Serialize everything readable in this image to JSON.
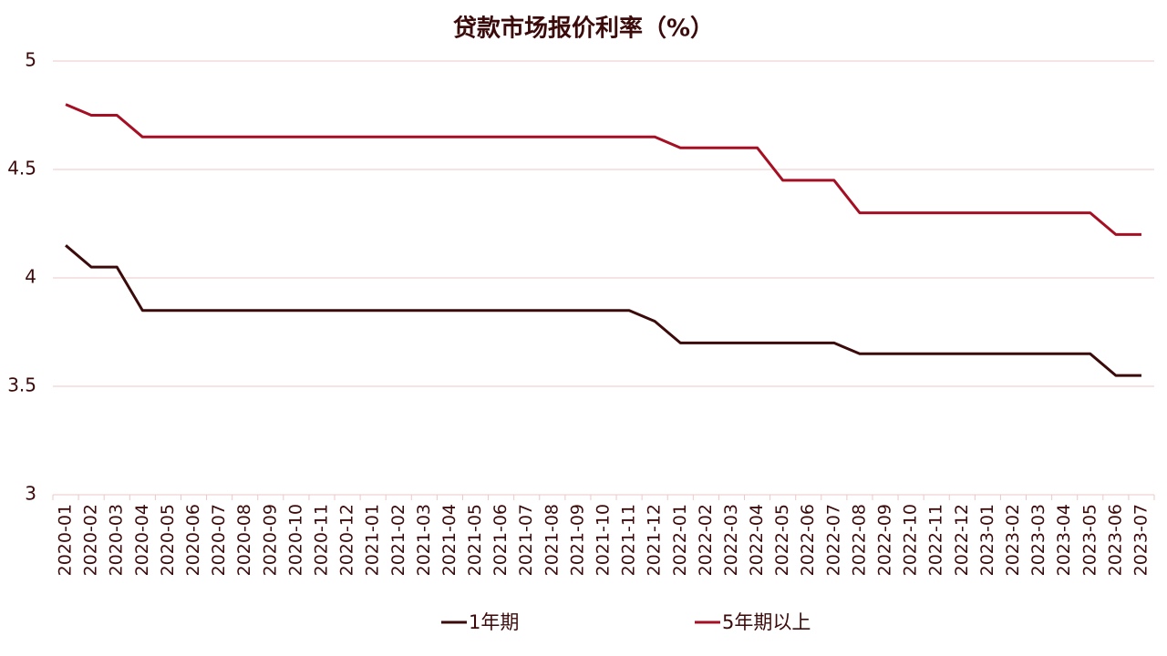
{
  "chart_data": {
    "type": "line",
    "title": "贷款市场报价利率（%）",
    "categories": [
      "2020-01",
      "2020-02",
      "2020-03",
      "2020-04",
      "2020-05",
      "2020-06",
      "2020-07",
      "2020-08",
      "2020-09",
      "2020-10",
      "2020-11",
      "2020-12",
      "2021-01",
      "2021-02",
      "2021-03",
      "2021-04",
      "2021-05",
      "2021-06",
      "2021-07",
      "2021-08",
      "2021-09",
      "2021-10",
      "2021-11",
      "2021-12",
      "2022-01",
      "2022-02",
      "2022-03",
      "2022-04",
      "2022-05",
      "2022-06",
      "2022-07",
      "2022-08",
      "2022-09",
      "2022-10",
      "2022-11",
      "2022-12",
      "2023-01",
      "2023-02",
      "2023-03",
      "2023-04",
      "2023-05",
      "2023-06",
      "2023-07"
    ],
    "series": [
      {
        "name": "1年期",
        "color": "#3b0a0a",
        "values": [
          4.15,
          4.05,
          4.05,
          3.85,
          3.85,
          3.85,
          3.85,
          3.85,
          3.85,
          3.85,
          3.85,
          3.85,
          3.85,
          3.85,
          3.85,
          3.85,
          3.85,
          3.85,
          3.85,
          3.85,
          3.85,
          3.85,
          3.85,
          3.8,
          3.7,
          3.7,
          3.7,
          3.7,
          3.7,
          3.7,
          3.7,
          3.65,
          3.65,
          3.65,
          3.65,
          3.65,
          3.65,
          3.65,
          3.65,
          3.65,
          3.65,
          3.55,
          3.55
        ]
      },
      {
        "name": "5年期以上",
        "color": "#a50f23",
        "values": [
          4.8,
          4.75,
          4.75,
          4.65,
          4.65,
          4.65,
          4.65,
          4.65,
          4.65,
          4.65,
          4.65,
          4.65,
          4.65,
          4.65,
          4.65,
          4.65,
          4.65,
          4.65,
          4.65,
          4.65,
          4.65,
          4.65,
          4.65,
          4.65,
          4.6,
          4.6,
          4.6,
          4.6,
          4.45,
          4.45,
          4.45,
          4.3,
          4.3,
          4.3,
          4.3,
          4.3,
          4.3,
          4.3,
          4.3,
          4.3,
          4.3,
          4.2,
          4.2
        ]
      }
    ],
    "ylim": [
      3,
      5
    ],
    "yticks": [
      3,
      3.5,
      4,
      4.5,
      5
    ],
    "grid": true,
    "legend": "bottom"
  }
}
